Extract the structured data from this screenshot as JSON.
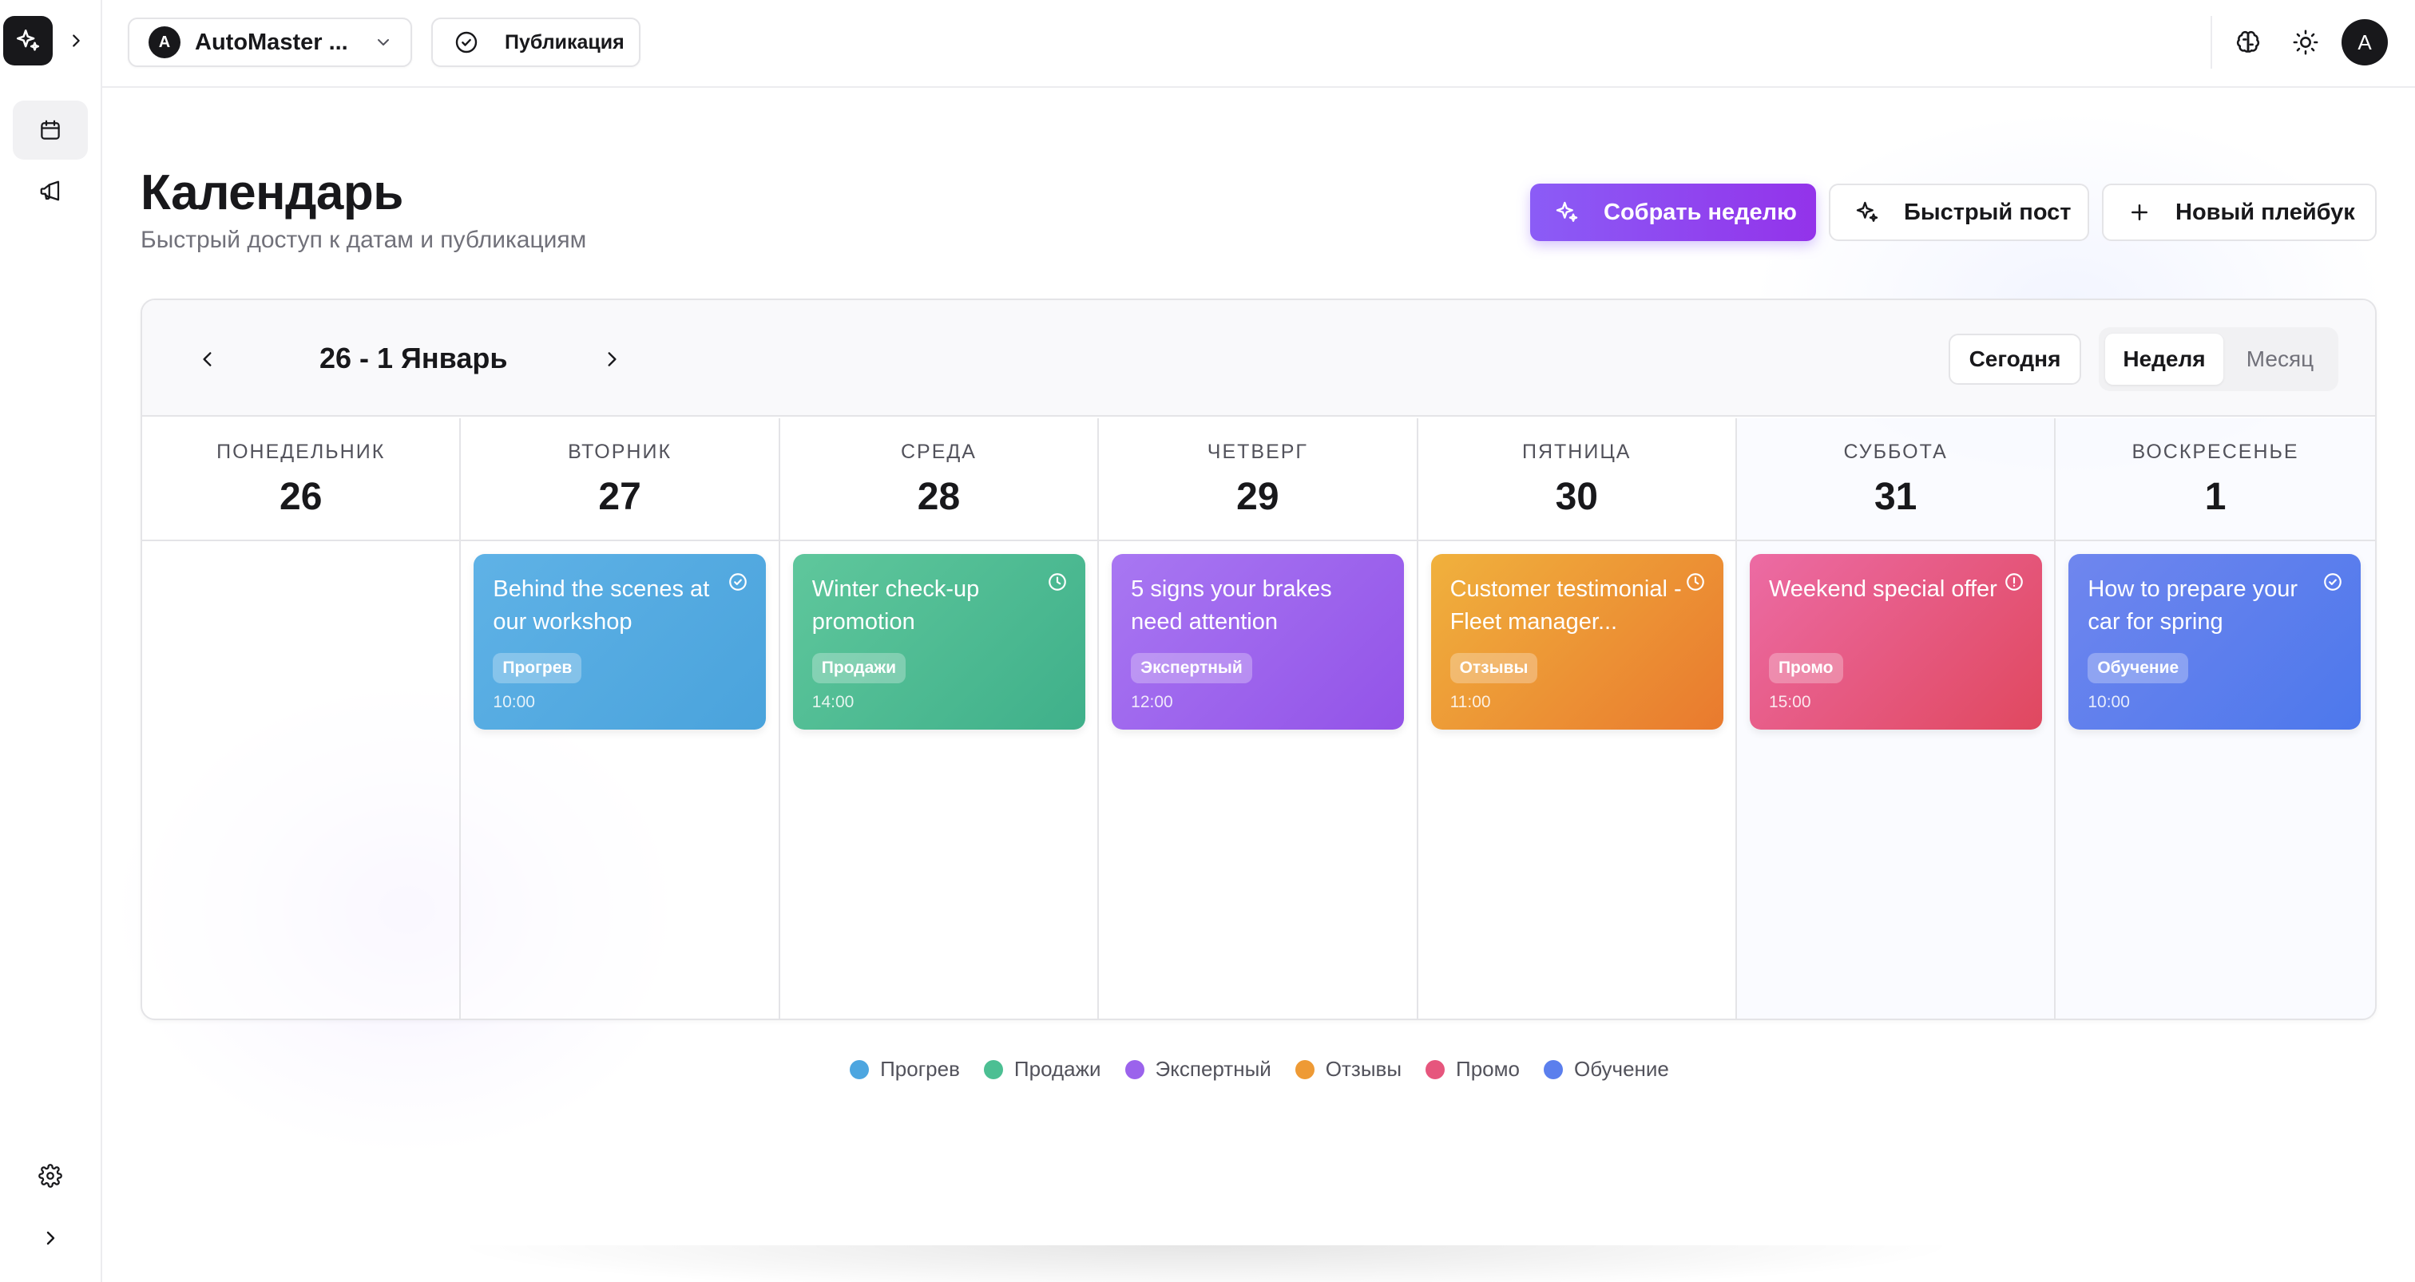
{
  "workspace": {
    "avatar_letter": "A",
    "name": "AutoMaster ..."
  },
  "toolbar": {
    "publication_label": "Публикация"
  },
  "user": {
    "avatar_letter": "A"
  },
  "page": {
    "title": "Календарь",
    "subtitle": "Быстрый доступ к датам и публикациям"
  },
  "actions": {
    "build_week": "Собрать неделю",
    "quick_post": "Быстрый пост",
    "new_playbook": "Новый плейбук"
  },
  "calendar": {
    "range_label": "26 - 1 Январь",
    "today_label": "Сегодня",
    "view_week": "Неделя",
    "view_month": "Месяц",
    "days": [
      {
        "name": "ПОНЕДЕЛЬНИК",
        "number": "26"
      },
      {
        "name": "ВТОРНИК",
        "number": "27"
      },
      {
        "name": "СРЕДА",
        "number": "28"
      },
      {
        "name": "ЧЕТВЕРГ",
        "number": "29"
      },
      {
        "name": "ПЯТНИЦА",
        "number": "30"
      },
      {
        "name": "СУББОТА",
        "number": "31"
      },
      {
        "name": "ВОСКРЕСЕНЬЕ",
        "number": "1"
      }
    ],
    "events": [
      {
        "day": "27",
        "title": "Behind the scenes at our workshop",
        "tag": "Прогрев",
        "time": "10:00",
        "status_icon": "check-circle-icon",
        "color_from": "#5fb2e6",
        "color_to": "#4aa3dc"
      },
      {
        "day": "28",
        "title": "Winter check-up promotion",
        "tag": "Продажи",
        "time": "14:00",
        "status_icon": "clock-icon",
        "color_from": "#5fc79c",
        "color_to": "#3fb08a"
      },
      {
        "day": "29",
        "title": "5 signs your brakes need attention",
        "tag": "Экспертный",
        "time": "12:00",
        "status_icon": "none",
        "color_from": "#a877f2",
        "color_to": "#9353e8"
      },
      {
        "day": "30",
        "title": "Customer testimonial - Fleet manager...",
        "tag": "Отзывы",
        "time": "11:00",
        "status_icon": "clock-icon",
        "color_from": "#f0b13d",
        "color_to": "#e97a2e"
      },
      {
        "day": "31",
        "title": "Weekend special offer",
        "tag": "Промо",
        "time": "15:00",
        "status_icon": "alert-circle-icon",
        "color_from": "#ec6ba4",
        "color_to": "#e0485f"
      },
      {
        "day": "1",
        "title": "How to prepare your car for spring",
        "tag": "Обучение",
        "time": "10:00",
        "status_icon": "check-circle-icon",
        "color_from": "#6f86ee",
        "color_to": "#4d78ec"
      }
    ]
  },
  "legend": [
    {
      "label": "Прогрев",
      "color": "#4da6e0"
    },
    {
      "label": "Продажи",
      "color": "#4cbf93"
    },
    {
      "label": "Экспертный",
      "color": "#9b63ec"
    },
    {
      "label": "Отзывы",
      "color": "#ee9a35"
    },
    {
      "label": "Промо",
      "color": "#e6567d"
    },
    {
      "label": "Обучение",
      "color": "#5b7fed"
    }
  ]
}
